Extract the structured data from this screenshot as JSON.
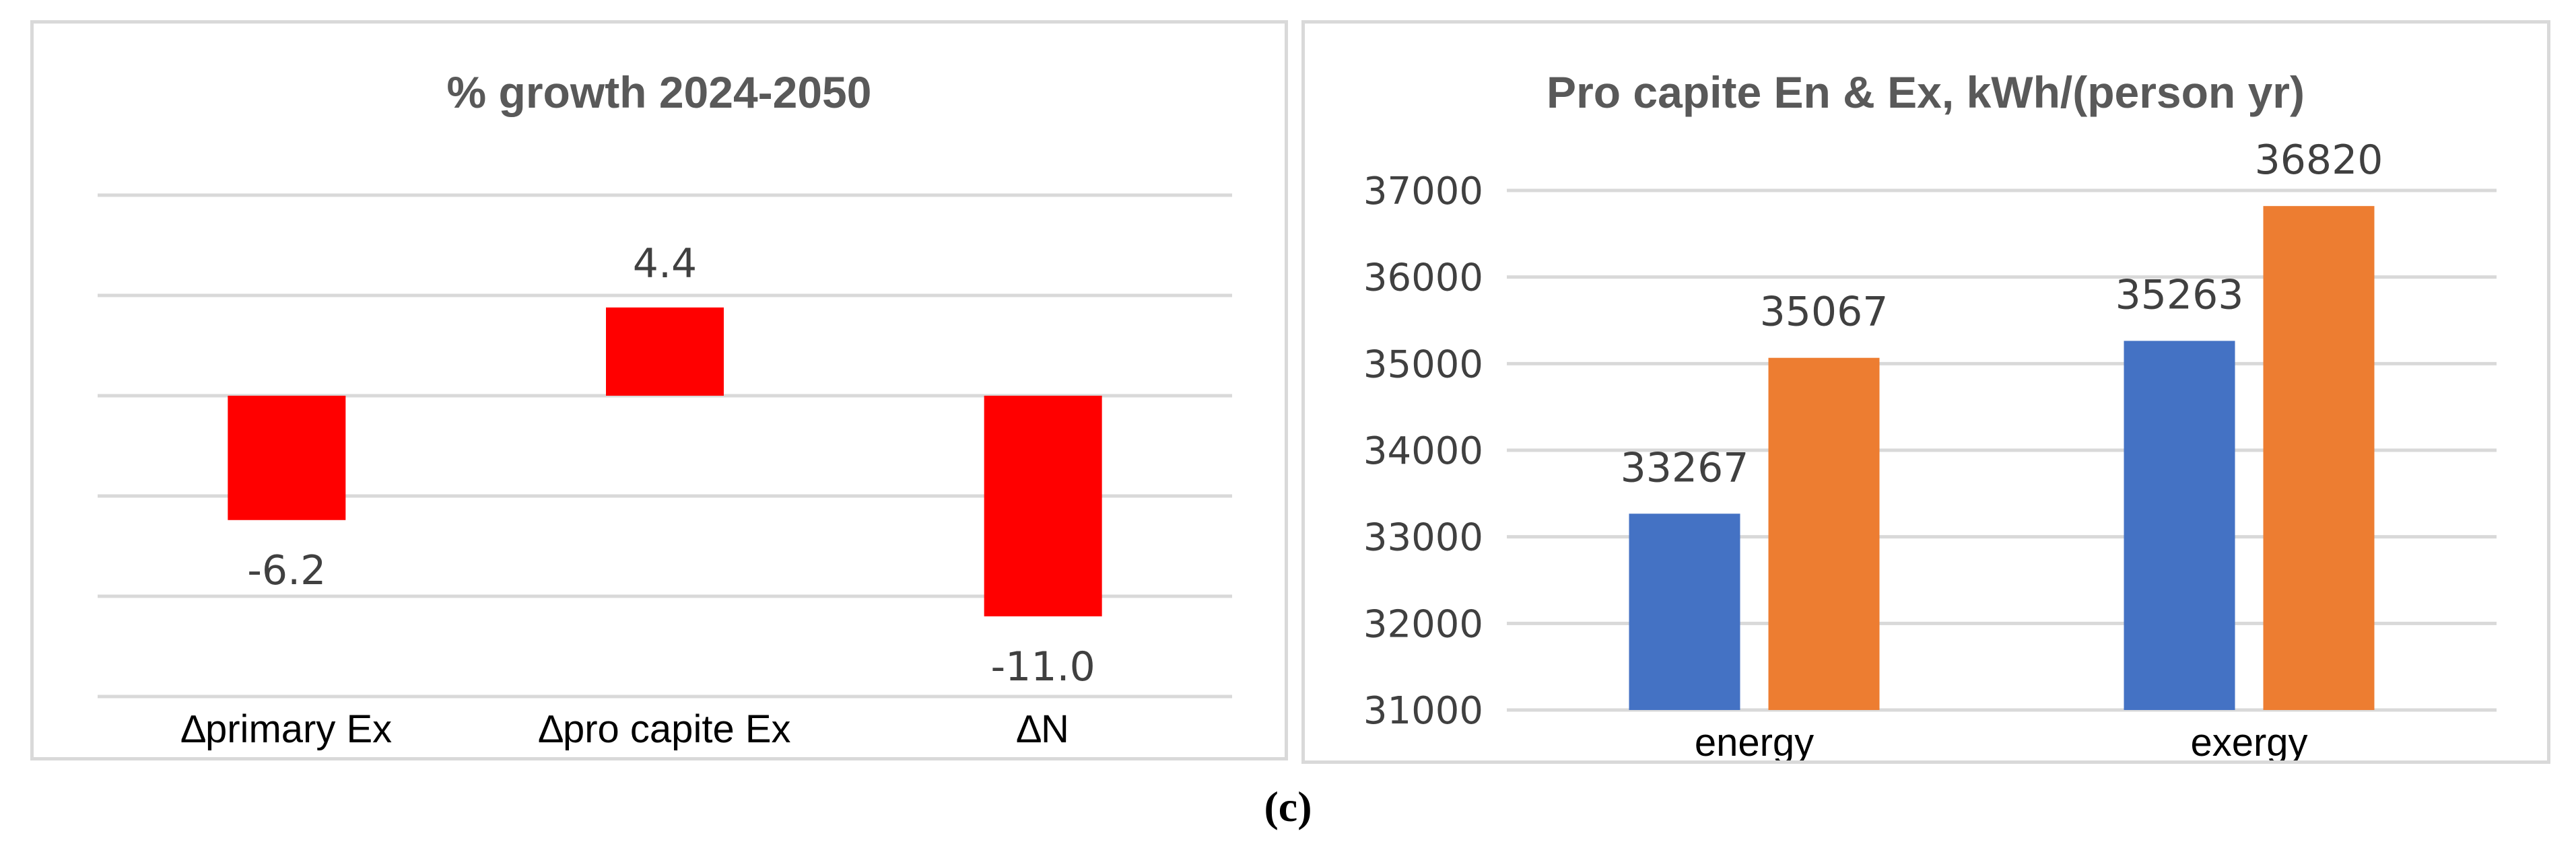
{
  "caption": "(c)",
  "chart_data": [
    {
      "type": "bar",
      "title": "% growth 2024-2050",
      "categories": [
        "∆primary Ex",
        "∆pro capite Ex",
        "∆N"
      ],
      "values": [
        -6.2,
        4.4,
        -11.0
      ],
      "data_labels": [
        "-6.2",
        "4.4",
        "-11.0"
      ],
      "ylim": [
        -15,
        10
      ],
      "ytick_step": 5,
      "show_y_tick_labels": false,
      "grid": true,
      "legend": "none",
      "colors": {
        "bar": "#ff0000",
        "grid": "#d9d9d9"
      }
    },
    {
      "type": "bar",
      "title": "Pro capite En & Ex, kWh/(person yr)",
      "categories": [
        "energy",
        "exergy"
      ],
      "series": [
        {
          "values": [
            33267,
            35263
          ],
          "labels": [
            "33267",
            "35263"
          ],
          "color": "#4472c4"
        },
        {
          "values": [
            35067,
            36820
          ],
          "labels": [
            "35067",
            "36820"
          ],
          "color": "#ed7d31"
        }
      ],
      "ylim": [
        31000,
        37000
      ],
      "yticks": [
        "31000",
        "32000",
        "33000",
        "34000",
        "35000",
        "36000",
        "37000"
      ],
      "grid": true,
      "legend": "none",
      "colors": {
        "grid": "#d9d9d9"
      }
    }
  ]
}
